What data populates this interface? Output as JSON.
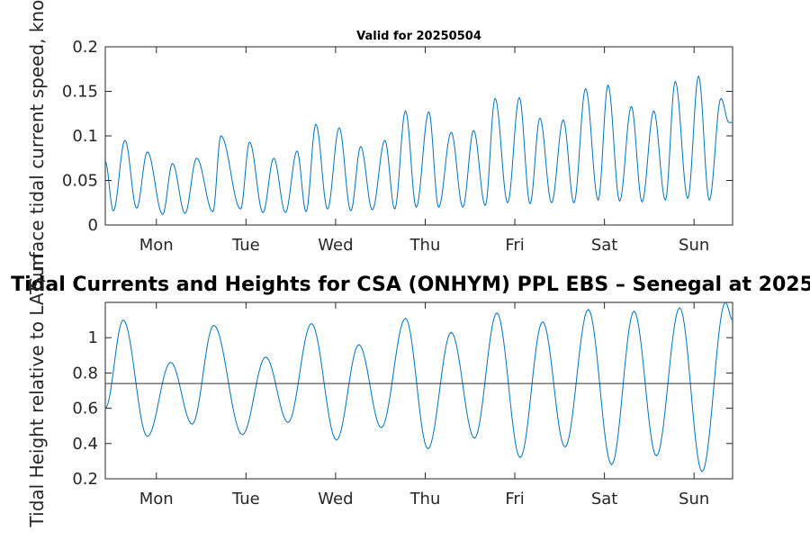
{
  "figure_title": "Tidal Currents and Heights for CSA (ONHYM) PPL EBS  – Senegal at 2025",
  "chart_data": [
    {
      "type": "line",
      "title": "Valid for 20250504",
      "ylabel": "Surface tidal current speed, knots",
      "xlabel": "",
      "x_unit": "days since start of plot window (Sun 2025-05-04 ~17:00 local)",
      "xlim": [
        0,
        7
      ],
      "ylim": [
        0,
        0.2
      ],
      "yticks": [
        0,
        0.05,
        0.1,
        0.15,
        0.2
      ],
      "ytick_labels": [
        "0",
        "0.05",
        "0.1",
        "0.15",
        "0.2"
      ],
      "xticks": [
        0.57,
        1.57,
        2.57,
        3.57,
        4.57,
        5.57,
        6.57
      ],
      "xtick_labels": [
        "Mon",
        "Tue",
        "Wed",
        "Thu",
        "Fri",
        "Sat",
        "Sun"
      ],
      "series": [
        {
          "name": "Surface tidal current speed",
          "color": "#0072BD",
          "x": [
            0,
            0.09,
            0.22,
            0.35,
            0.47,
            0.64,
            0.75,
            0.89,
            1.02,
            1.2,
            1.29,
            1.51,
            1.61,
            1.76,
            1.88,
            2.01,
            2.14,
            2.24,
            2.35,
            2.48,
            2.61,
            2.74,
            2.85,
            2.98,
            3.12,
            3.23,
            3.35,
            3.47,
            3.61,
            3.72,
            3.86,
            3.99,
            4.11,
            4.24,
            4.35,
            4.49,
            4.62,
            4.74,
            4.85,
            4.98,
            5.11,
            5.23,
            5.36,
            5.5,
            5.61,
            5.74,
            5.87,
            5.99,
            6.12,
            6.25,
            6.36,
            6.5,
            6.62,
            6.74,
            6.87,
            6.96,
            7.0
          ],
          "y": [
            0.071,
            0.016,
            0.095,
            0.019,
            0.082,
            0.012,
            0.069,
            0.013,
            0.075,
            0.015,
            0.1,
            0.018,
            0.093,
            0.014,
            0.075,
            0.014,
            0.083,
            0.015,
            0.113,
            0.018,
            0.109,
            0.016,
            0.088,
            0.017,
            0.095,
            0.018,
            0.128,
            0.02,
            0.127,
            0.02,
            0.104,
            0.02,
            0.106,
            0.022,
            0.142,
            0.025,
            0.143,
            0.024,
            0.12,
            0.025,
            0.118,
            0.025,
            0.153,
            0.028,
            0.157,
            0.027,
            0.133,
            0.026,
            0.128,
            0.028,
            0.161,
            0.03,
            0.167,
            0.028,
            0.142,
            0.115,
            0.115
          ]
        }
      ]
    },
    {
      "type": "line",
      "title": "",
      "ylabel": "Tidal Height relative to LAT, m",
      "xlabel": "",
      "x_unit": "days since start of plot window (Sun 2025-05-04 ~17:00 local)",
      "xlim": [
        0,
        7
      ],
      "ylim": [
        0.2,
        1.2
      ],
      "yticks": [
        0.2,
        0.4,
        0.6,
        0.8,
        1.0
      ],
      "ytick_labels": [
        "0.2",
        "0.4",
        "0.6",
        "0.8",
        "1"
      ],
      "xticks": [
        0.57,
        1.57,
        2.57,
        3.57,
        4.57,
        5.57,
        6.57
      ],
      "xtick_labels": [
        "Mon",
        "Tue",
        "Wed",
        "Thu",
        "Fri",
        "Sat",
        "Sun"
      ],
      "reference_line": {
        "y": 0.74,
        "color": "#333333"
      },
      "series": [
        {
          "name": "Tidal height",
          "color": "#0072BD",
          "x": [
            0,
            0.2,
            0.47,
            0.73,
            0.97,
            1.21,
            1.53,
            1.79,
            2.04,
            2.3,
            2.58,
            2.83,
            3.08,
            3.35,
            3.6,
            3.86,
            4.12,
            4.37,
            4.63,
            4.88,
            5.13,
            5.39,
            5.65,
            5.9,
            6.15,
            6.41,
            6.66,
            6.92,
            7.0
          ],
          "y": [
            0.6,
            1.1,
            0.44,
            0.86,
            0.51,
            1.07,
            0.45,
            0.89,
            0.52,
            1.08,
            0.42,
            0.96,
            0.49,
            1.11,
            0.37,
            1.03,
            0.43,
            1.14,
            0.32,
            1.09,
            0.38,
            1.16,
            0.28,
            1.15,
            0.33,
            1.17,
            0.24,
            1.2,
            1.1
          ]
        }
      ]
    }
  ]
}
